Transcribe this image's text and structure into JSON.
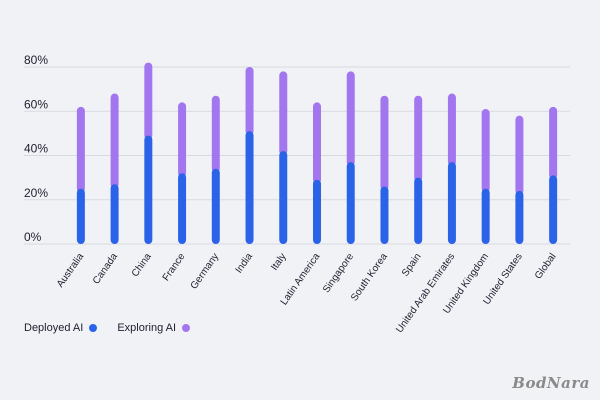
{
  "chart_data": {
    "type": "bar",
    "stacked": true,
    "categories": [
      "Australia",
      "Canada",
      "China",
      "France",
      "Germany",
      "India",
      "Italy",
      "Latin America",
      "Singapore",
      "South Korea",
      "Spain",
      "United Arab Emirates",
      "United Kingdom",
      "United States",
      "Global"
    ],
    "series": [
      {
        "name": "Deployed AI",
        "color": "#2b63e8",
        "values": [
          25,
          27,
          49,
          32,
          34,
          51,
          42,
          29,
          37,
          26,
          30,
          37,
          25,
          24,
          31
        ]
      },
      {
        "name": "Exploring AI",
        "color": "#a276ef",
        "values": [
          37,
          41,
          33,
          32,
          33,
          29,
          36,
          35,
          41,
          41,
          37,
          31,
          36,
          34,
          31
        ]
      }
    ],
    "yticks": [
      "0%",
      "20%",
      "40%",
      "60%",
      "80%"
    ],
    "ylim": [
      0,
      80
    ],
    "grid": true,
    "legend_position": "bottom-left",
    "title": "",
    "xlabel": "",
    "ylabel": ""
  },
  "legend": {
    "deployed_label": "Deployed AI",
    "exploring_label": "Exploring AI"
  },
  "watermark": "BodNara"
}
